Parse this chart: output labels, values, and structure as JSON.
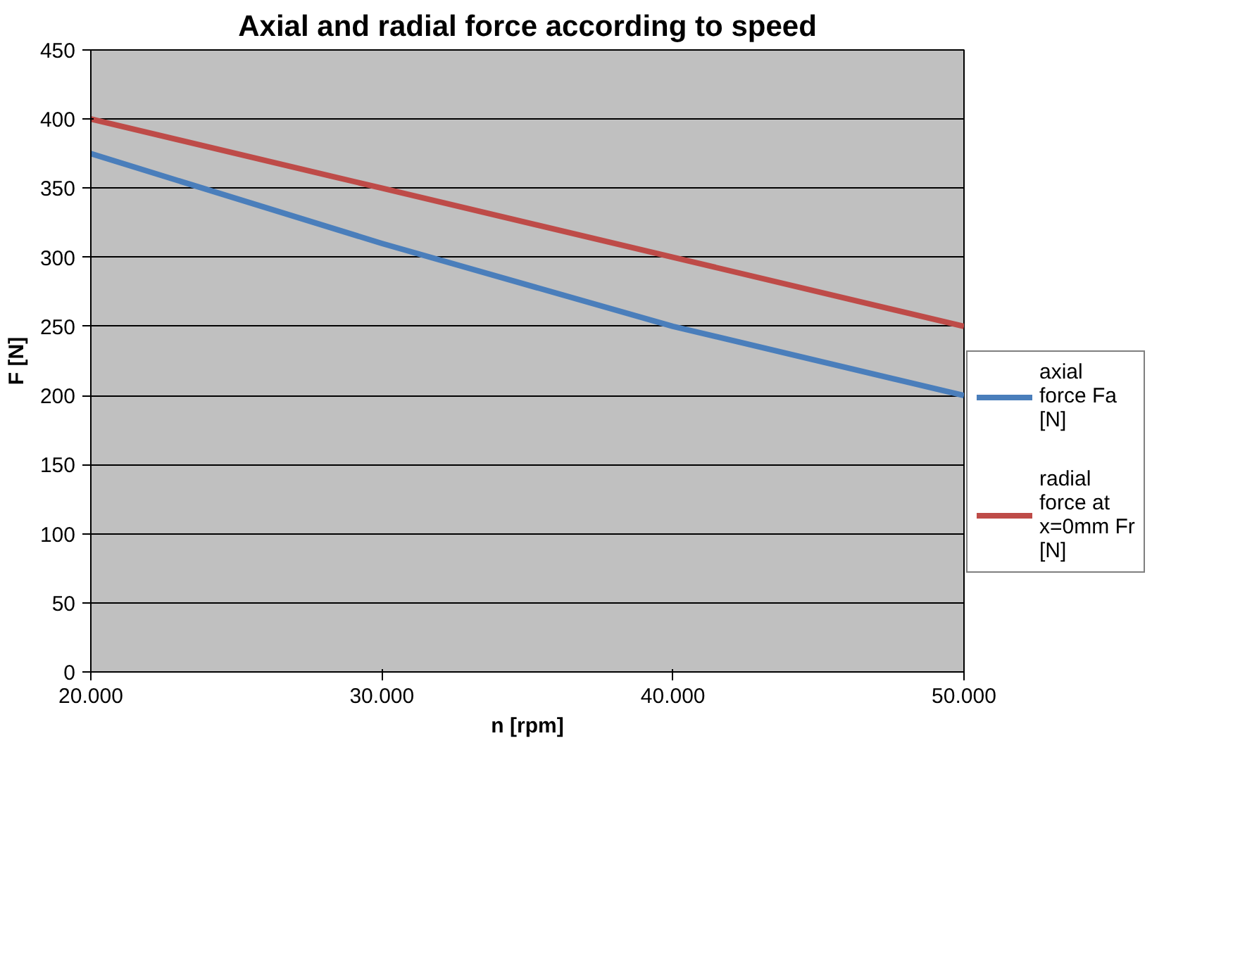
{
  "chart_data": {
    "type": "line",
    "title": "Axial and radial force according to speed",
    "xlabel": "n [rpm]",
    "ylabel": "F [N]",
    "x": [
      20000,
      30000,
      40000,
      50000
    ],
    "series": [
      {
        "name": "axial force Fa [N]",
        "color": "#4a7ebb",
        "values": [
          375,
          310,
          250,
          200
        ]
      },
      {
        "name": "radial force at x=0mm Fr [N]",
        "color": "#be4b48",
        "values": [
          400,
          350,
          300,
          250
        ]
      }
    ],
    "xlim": [
      20000,
      50000
    ],
    "ylim": [
      0,
      450
    ],
    "xticks": [
      {
        "value": 20000,
        "label": "20.000"
      },
      {
        "value": 30000,
        "label": "30.000"
      },
      {
        "value": 40000,
        "label": "40.000"
      },
      {
        "value": 50000,
        "label": "50.000"
      }
    ],
    "yticks": [
      0,
      50,
      100,
      150,
      200,
      250,
      300,
      350,
      400,
      450
    ],
    "grid": "y",
    "legend": "right",
    "marker": "none",
    "line_style": "solid"
  }
}
